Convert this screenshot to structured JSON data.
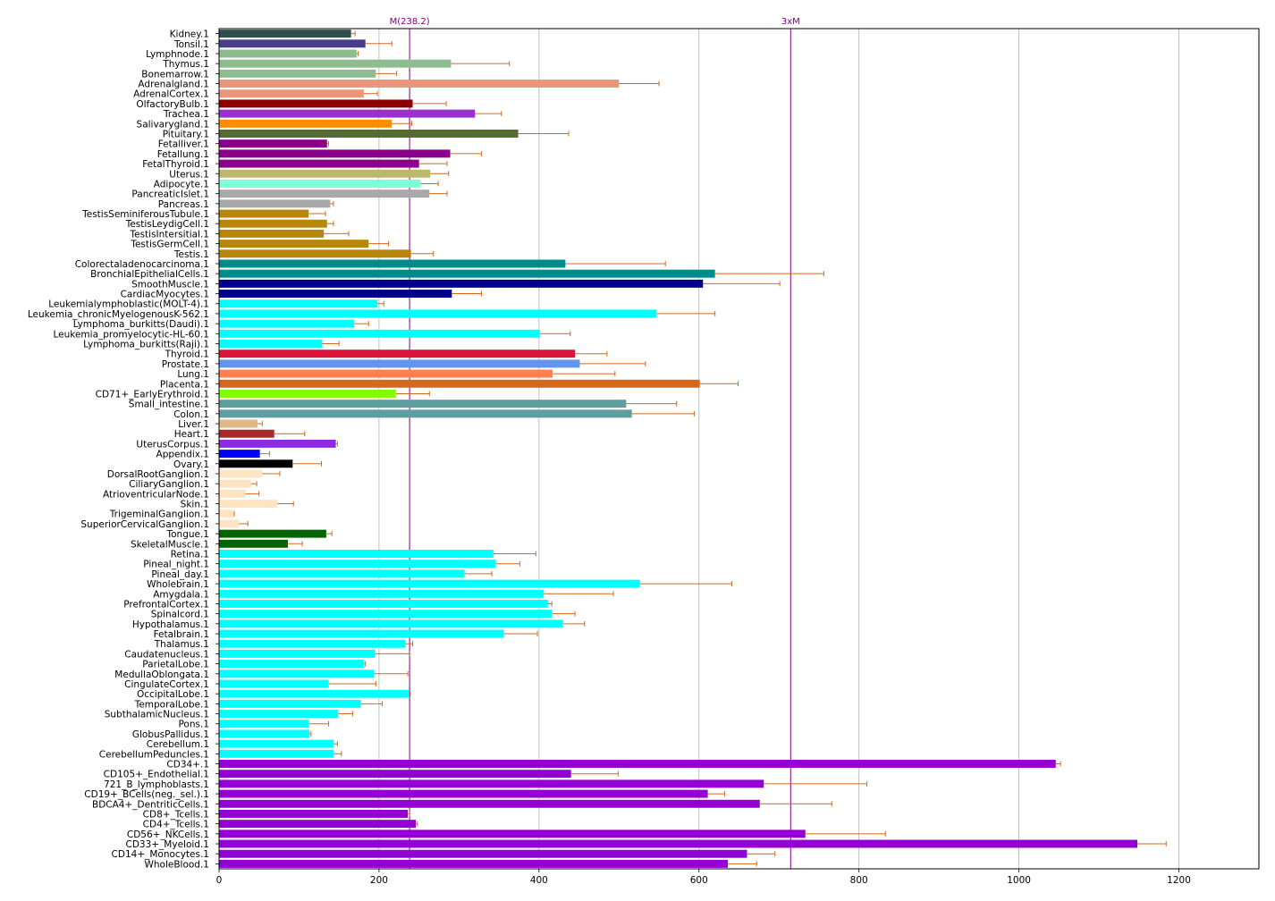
{
  "chart_data": {
    "type": "bar",
    "orientation": "horizontal",
    "xlim": [
      0,
      1300
    ],
    "xticks": [
      0,
      200,
      400,
      600,
      800,
      1000,
      1200
    ],
    "grid": "x",
    "error_bar_color": "#d2691e",
    "reference_lines": [
      {
        "label": "M(238.2)",
        "value": 238.2,
        "color": "#800080"
      },
      {
        "label": "3xM",
        "value": 714.6,
        "color": "#800080"
      }
    ],
    "categories": [
      "Kidney.1",
      "Tonsil.1",
      "Lymphnode.1",
      "Thymus.1",
      "Bonemarrow.1",
      "Adrenalgland.1",
      "AdrenalCortex.1",
      "OlfactoryBulb.1",
      "Trachea.1",
      "Salivarygland.1",
      "Pituitary.1",
      "Fetalliver.1",
      "Fetallung.1",
      "FetalThyroid.1",
      "Uterus.1",
      "Adipocyte.1",
      "PancreaticIslet.1",
      "Pancreas.1",
      "TestisSeminiferousTubule.1",
      "TestisLeydigCell.1",
      "TestisIntersitial.1",
      "TestisGermCell.1",
      "Testis.1",
      "Colorectaladenocarcinoma.1",
      "BronchialEpithelialCells.1",
      "SmoothMuscle.1",
      "CardiacMyocytes.1",
      "Leukemialymphoblastic(MOLT-4).1",
      "Leukemia_chronicMyelogenousK-562.1",
      "Lymphoma_burkitts(Daudi).1",
      "Leukemia_promyelocytic-HL-60.1",
      "Lymphoma_burkitts(Raji).1",
      "Thyroid.1",
      "Prostate.1",
      "Lung.1",
      "Placenta.1",
      "CD71+_EarlyErythroid.1",
      "Small_intestine.1",
      "Colon.1",
      "Liver.1",
      "Heart.1",
      "UterusCorpus.1",
      "Appendix.1",
      "Ovary.1",
      "DorsalRootGanglion.1",
      "CiliaryGanglion.1",
      "AtrioventricularNode.1",
      "Skin.1",
      "TrigeminalGanglion.1",
      "SuperiorCervicalGanglion.1",
      "Tongue.1",
      "SkeletalMuscle.1",
      "Retina.1",
      "Pineal_night.1",
      "Pineal_day.1",
      "Wholebrain.1",
      "Amygdala.1",
      "PrefrontalCortex.1",
      "Spinalcord.1",
      "Hypothalamus.1",
      "Fetalbrain.1",
      "Thalamus.1",
      "Caudatenucleus.1",
      "ParietalLobe.1",
      "MedullaOblongata.1",
      "CingulateCortex.1",
      "OccipitalLobe.1",
      "TemporalLobe.1",
      "SubthalamicNucleus.1",
      "Pons.1",
      "GlobusPallidus.1",
      "Cerebellum.1",
      "CerebellumPeduncles.1",
      "CD34+.1",
      "CD105+_Endothelial.1",
      "721_B_lymphoblasts.1",
      "CD19+_BCells(neg._sel.).1",
      "BDCA4+_DentriticCells.1",
      "CD8+_Tcells.1",
      "CD4+_Tcells.1",
      "CD56+_NKCells.1",
      "CD33+_Myeloid.1",
      "CD14+_Monocytes.1",
      "WholeBlood.1"
    ],
    "values": [
      165,
      183,
      172,
      290,
      196,
      500,
      181,
      242,
      320,
      216,
      374,
      135,
      289,
      250,
      264,
      252,
      263,
      139,
      112,
      135,
      131,
      187,
      240,
      433,
      620,
      605,
      291,
      198,
      547,
      169,
      401,
      129,
      445,
      451,
      417,
      601,
      221,
      509,
      516,
      48,
      69,
      146,
      51,
      92,
      54,
      40,
      33,
      73,
      18,
      25,
      134,
      86,
      343,
      346,
      307,
      526,
      406,
      411,
      416,
      430,
      356,
      233,
      195,
      181,
      194,
      137,
      237,
      177,
      149,
      112,
      113,
      143,
      143,
      1046,
      440,
      681,
      611,
      676,
      236,
      246,
      733,
      1148,
      660,
      636
    ],
    "errors": [
      5,
      33,
      2,
      73,
      26,
      50,
      17,
      42,
      33,
      25,
      63,
      2,
      39,
      35,
      23,
      22,
      22,
      4,
      21,
      8,
      31,
      25,
      28,
      125,
      136,
      96,
      37,
      8,
      73,
      18,
      38,
      21,
      40,
      82,
      78,
      48,
      42,
      63,
      78,
      6,
      38,
      2,
      12,
      36,
      22,
      7,
      17,
      20,
      1,
      11,
      7,
      18,
      53,
      30,
      34,
      115,
      87,
      5,
      29,
      27,
      42,
      9,
      43,
      2,
      42,
      59,
      2,
      27,
      18,
      25,
      2,
      5,
      10,
      6,
      59,
      129,
      21,
      90,
      2,
      2,
      100,
      36,
      35,
      36
    ],
    "colors": [
      "#2f4f4f",
      "#483d8b",
      "#8fbc8f",
      "#8fbc8f",
      "#8fbc8f",
      "#e9967a",
      "#e9967a",
      "#8b0000",
      "#9932cc",
      "#ff8c00",
      "#556b2f",
      "#8b008b",
      "#8b008b",
      "#8b008b",
      "#bdb76b",
      "#7fffd4",
      "#a9a9a9",
      "#a9a9a9",
      "#b8860b",
      "#b8860b",
      "#b8860b",
      "#b8860b",
      "#b8860b",
      "#008b8b",
      "#008b8b",
      "#00008b",
      "#00008b",
      "#00ffff",
      "#00ffff",
      "#00ffff",
      "#00ffff",
      "#00ffff",
      "#dc143c",
      "#6495ed",
      "#ff7f50",
      "#d2691e",
      "#7fff00",
      "#5f9ea0",
      "#5f9ea0",
      "#deb887",
      "#a52a2a",
      "#8a2be2",
      "#0000ff",
      "#000000",
      "#ffe4c4",
      "#ffe4c4",
      "#ffe4c4",
      "#ffe4c4",
      "#ffe4c4",
      "#ffe4c4",
      "#006400",
      "#006400",
      "#00ffff",
      "#00ffff",
      "#00ffff",
      "#00ffff",
      "#00ffff",
      "#00ffff",
      "#00ffff",
      "#00ffff",
      "#00ffff",
      "#00ffff",
      "#00ffff",
      "#00ffff",
      "#00ffff",
      "#00ffff",
      "#00ffff",
      "#00ffff",
      "#00ffff",
      "#00ffff",
      "#00ffff",
      "#00ffff",
      "#00ffff",
      "#9400d3",
      "#9400d3",
      "#9400d3",
      "#9400d3",
      "#9400d3",
      "#9400d3",
      "#9400d3",
      "#9400d3",
      "#9400d3",
      "#9400d3",
      "#9400d3"
    ]
  }
}
